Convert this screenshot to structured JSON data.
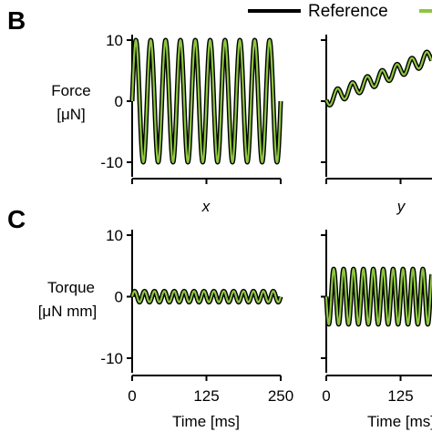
{
  "panels": {
    "B": "B",
    "C": "C"
  },
  "legend": {
    "reference_label": "Reference"
  },
  "colors": {
    "reference": "#000000",
    "measured": "#8dc63f",
    "axis": "#000000"
  },
  "column_labels": {
    "x": "x",
    "y": "y"
  },
  "chart_data": [
    {
      "id": "force-x",
      "type": "line",
      "panel": "B",
      "ylabel_lines": [
        "Force",
        "[μN]"
      ],
      "xlabel": "",
      "ylim": [
        -10,
        10
      ],
      "yticks": [
        "10",
        "0",
        "-10"
      ],
      "xlim": [
        0,
        250
      ],
      "xticks": [],
      "grid": false,
      "series": [
        {
          "signal": {
            "amp": 10,
            "freq_hz": 40,
            "offset": 0,
            "slope": 0,
            "phase": 0
          }
        }
      ]
    },
    {
      "id": "force-y",
      "type": "line",
      "panel": "B",
      "ylabel_lines": [],
      "xlabel": "",
      "ylim": [
        -10,
        10
      ],
      "yticks": [],
      "xlim": [
        0,
        250
      ],
      "xticks": [],
      "grid": false,
      "series": [
        {
          "signal": {
            "amp": 1.1,
            "freq_hz": 40,
            "offset": 0.2,
            "slope": 0.04,
            "phase": 3.14
          }
        }
      ]
    },
    {
      "id": "torque-x",
      "type": "line",
      "panel": "C",
      "ylabel_lines": [
        "Torque",
        "[μN mm]"
      ],
      "xlabel": "Time [ms]",
      "ylim": [
        -10,
        10
      ],
      "yticks": [
        "10",
        "0",
        "-10"
      ],
      "xlim": [
        0,
        250
      ],
      "xticks": [
        "0",
        "125",
        "250"
      ],
      "grid": false,
      "series": [
        {
          "signal": {
            "amp": 0.9,
            "freq_hz": 60,
            "offset": 0,
            "slope": 0,
            "phase": 0
          }
        }
      ]
    },
    {
      "id": "torque-y",
      "type": "line",
      "panel": "C",
      "ylabel_lines": [],
      "xlabel": "Time [ms]",
      "ylim": [
        -10,
        10
      ],
      "yticks": [],
      "xlim": [
        0,
        250
      ],
      "xticks": [
        "0",
        "125"
      ],
      "grid": false,
      "series": [
        {
          "signal": {
            "amp": 4.5,
            "freq_hz": 60,
            "offset": 0,
            "slope": 0,
            "phase": 3.14
          }
        }
      ]
    }
  ]
}
